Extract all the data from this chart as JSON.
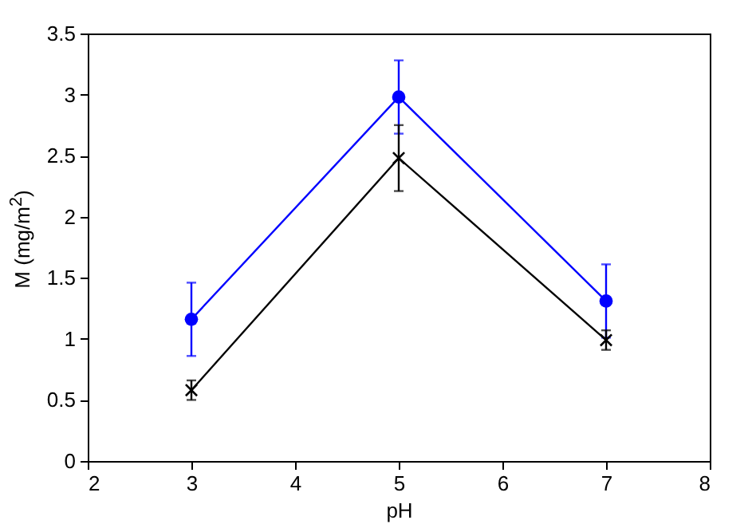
{
  "chart_data": {
    "type": "line",
    "xlabel": "pH",
    "ylabel": "M (mg/m$^{2}$)",
    "x": [
      3,
      5,
      7
    ],
    "xlim": [
      2,
      8
    ],
    "xticks": [
      2,
      3,
      4,
      5,
      6,
      7,
      8
    ],
    "ylim": [
      0,
      3.5
    ],
    "yticks": [
      0,
      0.5,
      1,
      1.5,
      2,
      2.5,
      3,
      3.5
    ],
    "grid": false,
    "series": [
      {
        "color": "#0000ff",
        "marker": "circle",
        "values": [
          1.16,
          2.98,
          1.31
        ],
        "errors": [
          0.3,
          0.3,
          0.3
        ]
      },
      {
        "color": "#000000",
        "marker": "cross",
        "values": [
          0.58,
          2.48,
          0.99
        ],
        "errors": [
          0.08,
          0.27,
          0.08
        ]
      }
    ]
  }
}
